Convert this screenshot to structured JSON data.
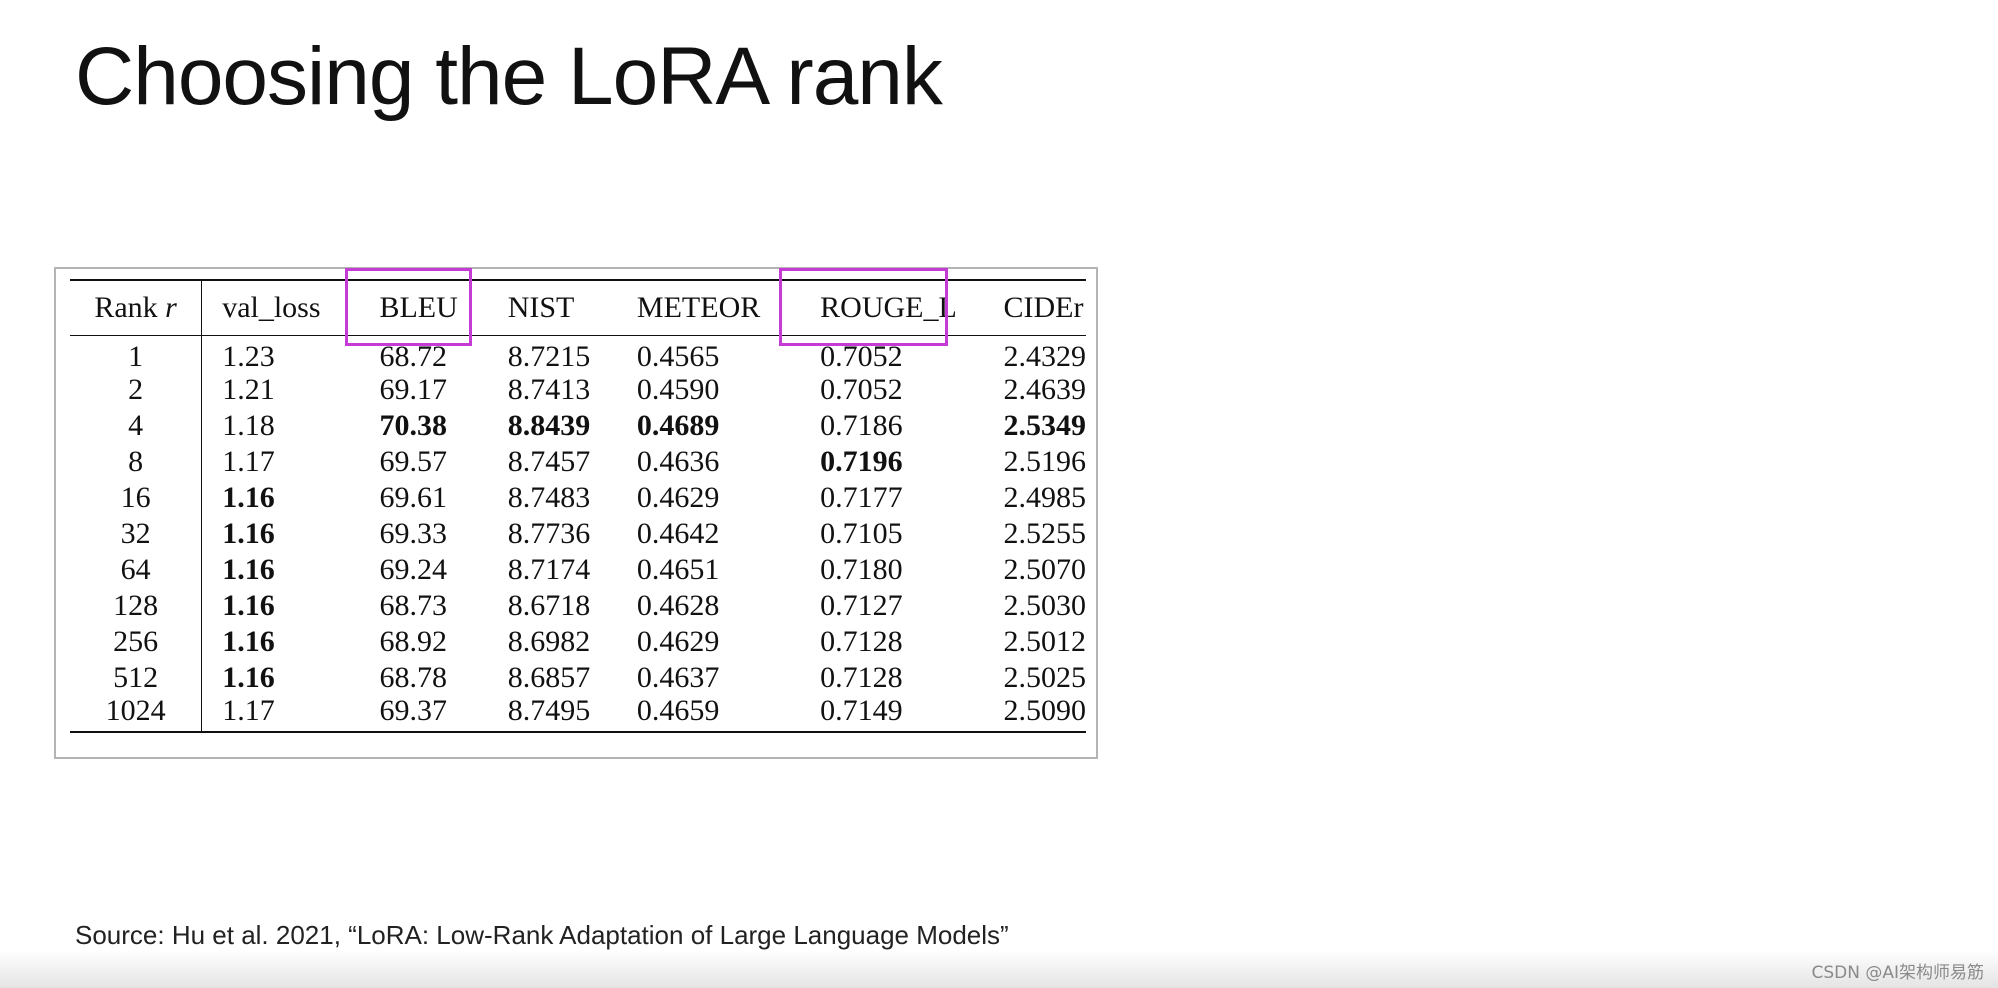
{
  "slide": {
    "title": "Choosing the LoRA rank",
    "source": "Source:  Hu et al. 2021, “LoRA: Low-Rank Adaptation of Large Language Models”",
    "watermark": "CSDN @AI架构师易筋"
  },
  "table": {
    "headers": {
      "rank": "Rank r",
      "val_loss": "val_loss",
      "bleu": "BLEU",
      "nist": "NIST",
      "meteor": "METEOR",
      "rouge_l": "ROUGE_L",
      "cider": "CIDEr"
    },
    "highlighted_columns": [
      "BLEU",
      "ROUGE_L"
    ],
    "highlight_color": "#c63ad6",
    "rows": [
      {
        "rank": "1",
        "val_loss": "1.23",
        "bleu": "68.72",
        "nist": "8.7215",
        "meteor": "0.4565",
        "rouge_l": "0.7052",
        "cider": "2.4329"
      },
      {
        "rank": "2",
        "val_loss": "1.21",
        "bleu": "69.17",
        "nist": "8.7413",
        "meteor": "0.4590",
        "rouge_l": "0.7052",
        "cider": "2.4639"
      },
      {
        "rank": "4",
        "val_loss": "1.18",
        "bleu": "70.38",
        "nist": "8.8439",
        "meteor": "0.4689",
        "rouge_l": "0.7186",
        "cider": "2.5349"
      },
      {
        "rank": "8",
        "val_loss": "1.17",
        "bleu": "69.57",
        "nist": "8.7457",
        "meteor": "0.4636",
        "rouge_l": "0.7196",
        "cider": "2.5196"
      },
      {
        "rank": "16",
        "val_loss": "1.16",
        "bleu": "69.61",
        "nist": "8.7483",
        "meteor": "0.4629",
        "rouge_l": "0.7177",
        "cider": "2.4985"
      },
      {
        "rank": "32",
        "val_loss": "1.16",
        "bleu": "69.33",
        "nist": "8.7736",
        "meteor": "0.4642",
        "rouge_l": "0.7105",
        "cider": "2.5255"
      },
      {
        "rank": "64",
        "val_loss": "1.16",
        "bleu": "69.24",
        "nist": "8.7174",
        "meteor": "0.4651",
        "rouge_l": "0.7180",
        "cider": "2.5070"
      },
      {
        "rank": "128",
        "val_loss": "1.16",
        "bleu": "68.73",
        "nist": "8.6718",
        "meteor": "0.4628",
        "rouge_l": "0.7127",
        "cider": "2.5030"
      },
      {
        "rank": "256",
        "val_loss": "1.16",
        "bleu": "68.92",
        "nist": "8.6982",
        "meteor": "0.4629",
        "rouge_l": "0.7128",
        "cider": "2.5012"
      },
      {
        "rank": "512",
        "val_loss": "1.16",
        "bleu": "68.78",
        "nist": "8.6857",
        "meteor": "0.4637",
        "rouge_l": "0.7128",
        "cider": "2.5025"
      },
      {
        "rank": "1024",
        "val_loss": "1.17",
        "bleu": "69.37",
        "nist": "8.7495",
        "meteor": "0.4659",
        "rouge_l": "0.7149",
        "cider": "2.5090"
      }
    ]
  }
}
